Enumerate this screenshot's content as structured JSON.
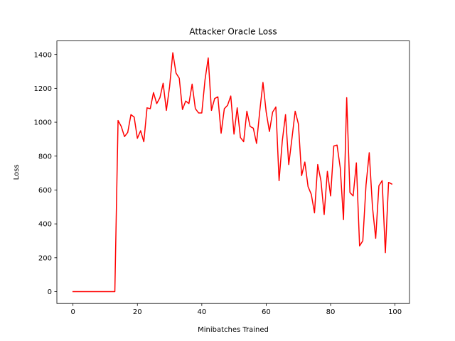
{
  "chart_data": {
    "type": "line",
    "title": "Attacker Oracle Loss",
    "xlabel": "Minibatches Trained",
    "ylabel": "Loss",
    "xlim": [
      -5,
      104.5
    ],
    "ylim": [
      -70,
      1480
    ],
    "xticks": [
      0,
      20,
      40,
      60,
      80,
      100
    ],
    "yticks": [
      0,
      200,
      400,
      600,
      800,
      1000,
      1200,
      1400
    ],
    "grid": false,
    "series": [
      {
        "color": "#ff0000",
        "x": [
          0,
          1,
          2,
          3,
          4,
          5,
          6,
          7,
          8,
          9,
          10,
          11,
          12,
          13,
          14,
          15,
          16,
          17,
          18,
          19,
          20,
          21,
          22,
          23,
          24,
          25,
          26,
          27,
          28,
          29,
          30,
          31,
          32,
          33,
          34,
          35,
          36,
          37,
          38,
          39,
          40,
          41,
          42,
          43,
          44,
          45,
          46,
          47,
          48,
          49,
          50,
          51,
          52,
          53,
          54,
          55,
          56,
          57,
          58,
          59,
          60,
          61,
          62,
          63,
          64,
          65,
          66,
          67,
          68,
          69,
          70,
          71,
          72,
          73,
          74,
          75,
          76,
          77,
          78,
          79,
          80,
          81,
          82,
          83,
          84,
          85,
          86,
          87,
          88,
          89,
          90,
          91,
          92,
          93,
          94,
          95,
          96,
          97,
          98,
          99
        ],
        "values": [
          0,
          0,
          0,
          0,
          0,
          0,
          0,
          0,
          0,
          0,
          0,
          0,
          0,
          0,
          1010,
          975,
          915,
          940,
          1045,
          1030,
          905,
          950,
          885,
          1085,
          1080,
          1175,
          1110,
          1145,
          1230,
          1070,
          1210,
          1410,
          1290,
          1260,
          1075,
          1125,
          1110,
          1225,
          1080,
          1055,
          1055,
          1250,
          1380,
          1070,
          1140,
          1150,
          935,
          1080,
          1100,
          1155,
          930,
          1085,
          910,
          885,
          1065,
          975,
          965,
          875,
          1065,
          1235,
          1060,
          945,
          1060,
          1090,
          655,
          890,
          1045,
          750,
          905,
          1065,
          990,
          685,
          765,
          620,
          575,
          465,
          750,
          655,
          455,
          710,
          565,
          860,
          865,
          730,
          425,
          1145,
          585,
          565,
          760,
          270,
          300,
          630,
          820,
          500,
          315,
          625,
          655,
          230,
          645,
          635
        ]
      }
    ]
  }
}
